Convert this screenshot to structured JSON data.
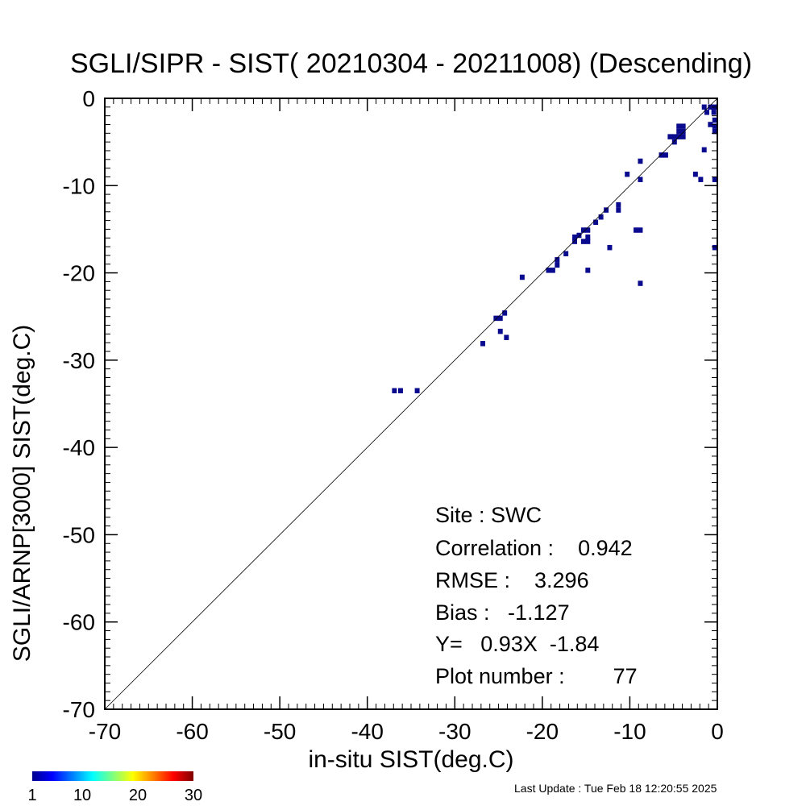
{
  "chart_data": {
    "type": "heatmap",
    "title": "SGLI/SIPR - SIST( 20210304 - 20211008) (Descending)",
    "xlabel": "in-situ SIST(deg.C)",
    "ylabel": "SGLI/ARNP[3000]    SIST(deg.C)",
    "xlim": [
      -70,
      0
    ],
    "ylim": [
      -70,
      0
    ],
    "x_ticks": [
      "-70",
      "-60",
      "-50",
      "-40",
      "-30",
      "-20",
      "-10",
      "0"
    ],
    "y_ticks": [
      "-70",
      "-60",
      "-50",
      "-40",
      "-30",
      "-20",
      "-10",
      "0"
    ],
    "reference_line": "1:1",
    "grid": false,
    "cell_color": "#0a0a8f",
    "cells": [
      [
        -1.5,
        -1.0
      ],
      [
        -0.8,
        -1.0
      ],
      [
        -0.3,
        -1.0
      ],
      [
        -1.2,
        -1.6
      ],
      [
        -0.4,
        -1.6
      ],
      [
        -0.3,
        -2.5
      ],
      [
        -0.3,
        -3.2
      ],
      [
        -0.3,
        -3.8
      ],
      [
        -0.8,
        -3.0
      ],
      [
        -1.5,
        -5.9
      ],
      [
        -4.4,
        -3.2
      ],
      [
        -3.9,
        -3.2
      ],
      [
        -4.4,
        -3.8
      ],
      [
        -3.9,
        -3.8
      ],
      [
        -4.9,
        -4.4
      ],
      [
        -5.4,
        -4.4
      ],
      [
        -4.4,
        -4.4
      ],
      [
        -4.9,
        -5.0
      ],
      [
        -3.9,
        -4.4
      ],
      [
        -5.9,
        -6.5
      ],
      [
        -6.4,
        -6.5
      ],
      [
        -8.8,
        -7.2
      ],
      [
        -10.3,
        -8.7
      ],
      [
        -8.8,
        -9.3
      ],
      [
        -2.5,
        -8.7
      ],
      [
        -1.9,
        -9.3
      ],
      [
        -0.3,
        -9.3
      ],
      [
        -11.3,
        -12.2
      ],
      [
        -11.3,
        -12.8
      ],
      [
        -12.7,
        -12.8
      ],
      [
        -13.3,
        -13.6
      ],
      [
        -13.9,
        -14.2
      ],
      [
        -14.8,
        -15.1
      ],
      [
        -15.3,
        -15.1
      ],
      [
        -9.3,
        -15.1
      ],
      [
        -8.8,
        -15.1
      ],
      [
        -15.8,
        -15.7
      ],
      [
        -16.3,
        -15.9
      ],
      [
        -14.8,
        -15.9
      ],
      [
        -15.3,
        -16.4
      ],
      [
        -14.8,
        -16.4
      ],
      [
        -16.3,
        -16.4
      ],
      [
        -12.3,
        -17.1
      ],
      [
        -0.3,
        -17.1
      ],
      [
        -17.3,
        -17.8
      ],
      [
        -18.3,
        -18.5
      ],
      [
        -18.3,
        -19.1
      ],
      [
        -18.8,
        -19.7
      ],
      [
        -19.3,
        -19.7
      ],
      [
        -14.8,
        -19.7
      ],
      [
        -22.3,
        -20.5
      ],
      [
        -8.8,
        -21.2
      ],
      [
        -24.3,
        -24.6
      ],
      [
        -25.3,
        -25.2
      ],
      [
        -24.8,
        -25.2
      ],
      [
        -24.8,
        -26.7
      ],
      [
        -24.1,
        -27.4
      ],
      [
        -26.8,
        -28.1
      ],
      [
        -36.9,
        -33.5
      ],
      [
        -36.2,
        -33.5
      ],
      [
        -34.3,
        -33.5
      ]
    ],
    "colorbar": {
      "ticks": [
        "1",
        "10",
        "20",
        "30"
      ],
      "min": 1,
      "max": 30
    },
    "stats": {
      "site": "Site : SWC",
      "correlation": "Correlation :    0.942",
      "rmse": "RMSE :    3.296",
      "bias": "Bias :   -1.127",
      "fit": "Y=   0.93X  -1.84",
      "plot_number": "Plot number :        77"
    },
    "footer": "Last Update : Tue Feb 18 12:20:55 2025"
  }
}
